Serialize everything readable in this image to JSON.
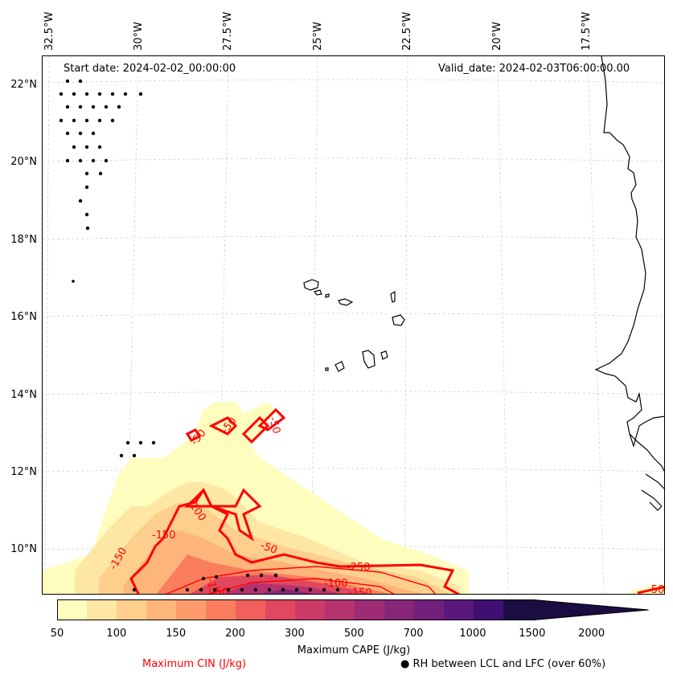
{
  "map": {
    "start_date": "Start date: 2024-02-02_00:00:00",
    "valid_date": "Valid_date: 2024-02-03T06:00:00.00",
    "longitude_labels": [
      "32.5°W",
      "30°W",
      "27.5°W",
      "25°W",
      "22.5°W",
      "20°W",
      "17.5°W"
    ],
    "latitude_labels": [
      "22°N",
      "20°N",
      "18°N",
      "16°N",
      "14°N",
      "12°N",
      "10°N"
    ],
    "cin_contour_labels": [
      "-50",
      "-50",
      "-50",
      "-50",
      "-100",
      "-150",
      "-150",
      "-150",
      "-250",
      "-100",
      "-150",
      "-50",
      "-50"
    ],
    "colors": {
      "cin_contour": "#ff0000",
      "coastline": "#000000",
      "grid": "#cccccc"
    }
  },
  "colorbar": {
    "title": "Maximum CAPE (J/kg)",
    "tick_labels": [
      "50",
      "100",
      "150",
      "200",
      "300",
      "500",
      "700",
      "1000",
      "1500",
      "2000"
    ],
    "colors": [
      "#fffdbe",
      "#fee7a5",
      "#fece8d",
      "#feb57a",
      "#fd9b6b",
      "#fa7e5e",
      "#f1605c",
      "#e1485f",
      "#cc3b68",
      "#b5336f",
      "#9d2c75",
      "#872679",
      "#71207c",
      "#5b177d",
      "#3f0f72",
      "#1b0c41"
    ]
  },
  "legend": {
    "cin_label": "Maximum CIN (J/kg)",
    "rh_label": "● RH between LCL and LFC (over 60%)"
  }
}
